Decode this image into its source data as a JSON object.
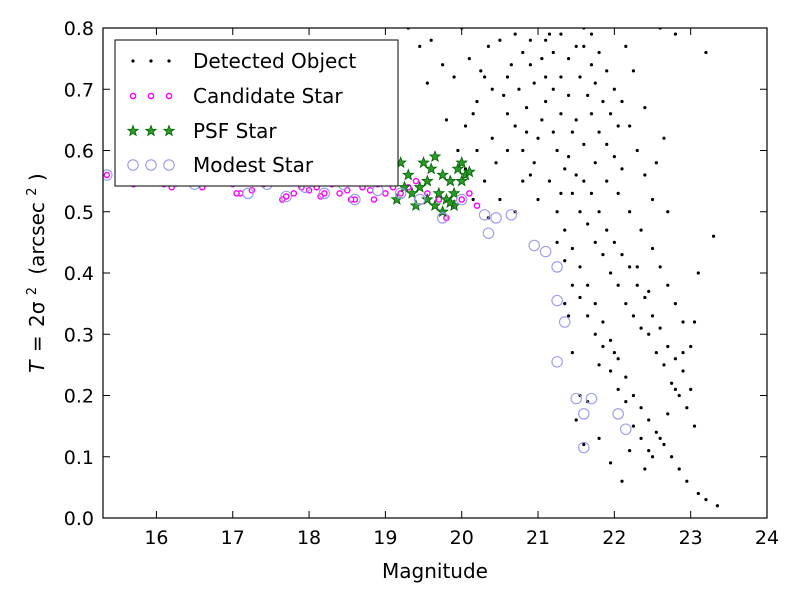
{
  "chart_data": {
    "type": "scatter",
    "title": "",
    "xlabel": "Magnitude",
    "ylabel": "T = 2σ² (arcsec²)",
    "ylabel_parts": {
      "lhs": "T",
      "eq": "=",
      "rhs": "2σ",
      "sup": "2",
      "unit_open": "(arcsec",
      "unit_sup": "2",
      "unit_close": ")"
    },
    "xlim": [
      15.3,
      24
    ],
    "ylim": [
      0.0,
      0.8
    ],
    "xticks": [
      "16",
      "17",
      "18",
      "19",
      "20",
      "21",
      "22",
      "23",
      "24"
    ],
    "yticks": [
      "0.0",
      "0.1",
      "0.2",
      "0.3",
      "0.4",
      "0.5",
      "0.6",
      "0.7",
      "0.8"
    ],
    "grid": false,
    "legend_position": "top-left",
    "colors": {
      "detected": "#000000",
      "candidate_edge": "#ff00ff",
      "psf_fill": "#2a9a2a",
      "psf_edge": "#006400",
      "modest_edge": "#9999ee"
    },
    "series": [
      {
        "name": "Detected Object",
        "marker": "dot",
        "points": [
          [
            20.35,
            0.49
          ],
          [
            20.5,
            0.52
          ],
          [
            20.7,
            0.5
          ],
          [
            20.8,
            0.55
          ],
          [
            20.95,
            0.58
          ],
          [
            21.0,
            0.52
          ],
          [
            20.4,
            0.62
          ],
          [
            20.6,
            0.66
          ],
          [
            20.75,
            0.7
          ],
          [
            20.9,
            0.74
          ],
          [
            21.1,
            0.78
          ],
          [
            20.5,
            0.78
          ],
          [
            20.3,
            0.72
          ],
          [
            20.2,
            0.68
          ],
          [
            20.1,
            0.75
          ],
          [
            20.0,
            0.8
          ],
          [
            19.6,
            0.78
          ],
          [
            19.9,
            0.72
          ],
          [
            19.8,
            0.65
          ],
          [
            20.45,
            0.58
          ],
          [
            20.6,
            0.6
          ],
          [
            20.85,
            0.63
          ],
          [
            21.05,
            0.65
          ],
          [
            21.2,
            0.7
          ],
          [
            21.3,
            0.72
          ],
          [
            21.4,
            0.75
          ],
          [
            21.5,
            0.77
          ],
          [
            21.6,
            0.8
          ],
          [
            21.7,
            0.79
          ],
          [
            21.8,
            0.76
          ],
          [
            21.9,
            0.73
          ],
          [
            22.0,
            0.7
          ],
          [
            22.1,
            0.68
          ],
          [
            22.2,
            0.64
          ],
          [
            22.3,
            0.6
          ],
          [
            22.4,
            0.56
          ],
          [
            22.5,
            0.52
          ],
          [
            21.25,
            0.6
          ],
          [
            21.35,
            0.57
          ],
          [
            21.45,
            0.53
          ],
          [
            21.55,
            0.5
          ],
          [
            21.65,
            0.48
          ],
          [
            21.75,
            0.45
          ],
          [
            21.85,
            0.43
          ],
          [
            21.95,
            0.4
          ],
          [
            22.05,
            0.38
          ],
          [
            22.15,
            0.35
          ],
          [
            22.25,
            0.33
          ],
          [
            22.35,
            0.31
          ],
          [
            22.45,
            0.3
          ],
          [
            22.55,
            0.27
          ],
          [
            22.65,
            0.25
          ],
          [
            22.75,
            0.22
          ],
          [
            22.85,
            0.2
          ],
          [
            22.95,
            0.18
          ],
          [
            23.05,
            0.15
          ],
          [
            21.3,
            0.66
          ],
          [
            21.45,
            0.63
          ],
          [
            21.6,
            0.61
          ],
          [
            21.75,
            0.58
          ],
          [
            21.9,
            0.55
          ],
          [
            22.05,
            0.53
          ],
          [
            22.2,
            0.5
          ],
          [
            22.35,
            0.47
          ],
          [
            22.5,
            0.44
          ],
          [
            22.6,
            0.41
          ],
          [
            22.7,
            0.38
          ],
          [
            22.8,
            0.35
          ],
          [
            22.9,
            0.32
          ],
          [
            23.0,
            0.28
          ],
          [
            21.15,
            0.55
          ],
          [
            21.25,
            0.5
          ],
          [
            21.35,
            0.47
          ],
          [
            21.45,
            0.44
          ],
          [
            21.55,
            0.41
          ],
          [
            21.65,
            0.38
          ],
          [
            21.75,
            0.35
          ],
          [
            21.85,
            0.32
          ],
          [
            21.95,
            0.29
          ],
          [
            22.05,
            0.26
          ],
          [
            22.15,
            0.23
          ],
          [
            22.25,
            0.2
          ],
          [
            22.35,
            0.18
          ],
          [
            22.45,
            0.16
          ],
          [
            22.55,
            0.14
          ],
          [
            22.65,
            0.12
          ],
          [
            22.75,
            0.1
          ],
          [
            22.85,
            0.08
          ],
          [
            22.95,
            0.06
          ],
          [
            23.1,
            0.04
          ],
          [
            23.2,
            0.03
          ],
          [
            23.35,
            0.02
          ],
          [
            23.3,
            0.46
          ],
          [
            23.2,
            0.76
          ],
          [
            23.1,
            0.4
          ],
          [
            23.05,
            0.32
          ],
          [
            22.9,
            0.27
          ],
          [
            22.8,
            0.21
          ],
          [
            22.7,
            0.17
          ],
          [
            22.6,
            0.13
          ],
          [
            22.5,
            0.1
          ],
          [
            22.4,
            0.08
          ],
          [
            22.2,
            0.11
          ],
          [
            22.1,
            0.06
          ],
          [
            21.95,
            0.09
          ],
          [
            21.8,
            0.13
          ],
          [
            21.65,
            0.19
          ],
          [
            21.55,
            0.2
          ],
          [
            21.5,
            0.16
          ],
          [
            21.6,
            0.12
          ],
          [
            21.4,
            0.33
          ],
          [
            21.35,
            0.35
          ],
          [
            21.45,
            0.27
          ],
          [
            21.8,
            0.25
          ],
          [
            22.0,
            0.27
          ],
          [
            22.3,
            0.41
          ],
          [
            22.45,
            0.37
          ],
          [
            22.55,
            0.58
          ],
          [
            22.7,
            0.5
          ],
          [
            22.65,
            0.62
          ],
          [
            22.4,
            0.67
          ],
          [
            22.25,
            0.73
          ],
          [
            22.15,
            0.77
          ],
          [
            22.6,
            0.8
          ],
          [
            22.8,
            0.79
          ],
          [
            20.55,
            0.69
          ],
          [
            20.65,
            0.74
          ],
          [
            20.85,
            0.67
          ],
          [
            20.95,
            0.71
          ],
          [
            21.05,
            0.75
          ],
          [
            21.15,
            0.79
          ],
          [
            20.3,
            0.55
          ],
          [
            20.2,
            0.6
          ],
          [
            20.15,
            0.52
          ],
          [
            20.05,
            0.57
          ],
          [
            19.95,
            0.6
          ],
          [
            19.75,
            0.74
          ],
          [
            19.55,
            0.71
          ],
          [
            19.45,
            0.77
          ],
          [
            19.3,
            0.8
          ],
          [
            21.7,
            0.66
          ],
          [
            21.8,
            0.63
          ],
          [
            21.9,
            0.61
          ],
          [
            22.0,
            0.59
          ],
          [
            22.1,
            0.57
          ],
          [
            21.2,
            0.63
          ],
          [
            21.1,
            0.68
          ],
          [
            21.0,
            0.62
          ],
          [
            20.9,
            0.56
          ],
          [
            20.8,
            0.6
          ],
          [
            20.7,
            0.64
          ],
          [
            21.55,
            0.72
          ],
          [
            21.65,
            0.69
          ],
          [
            21.75,
            0.71
          ],
          [
            21.85,
            0.68
          ],
          [
            21.95,
            0.66
          ],
          [
            22.05,
            0.64
          ],
          [
            21.4,
            0.69
          ],
          [
            21.5,
            0.65
          ],
          [
            21.6,
            0.55
          ],
          [
            21.7,
            0.53
          ],
          [
            21.8,
            0.5
          ],
          [
            21.9,
            0.47
          ],
          [
            22.0,
            0.45
          ],
          [
            22.1,
            0.43
          ],
          [
            22.2,
            0.41
          ],
          [
            22.3,
            0.38
          ],
          [
            22.4,
            0.36
          ],
          [
            22.5,
            0.33
          ],
          [
            22.6,
            0.31
          ],
          [
            22.7,
            0.28
          ],
          [
            22.8,
            0.26
          ],
          [
            22.9,
            0.24
          ],
          [
            23.0,
            0.21
          ],
          [
            21.6,
            0.77
          ],
          [
            21.7,
            0.74
          ],
          [
            21.3,
            0.79
          ],
          [
            21.2,
            0.76
          ],
          [
            21.1,
            0.72
          ],
          [
            20.9,
            0.78
          ],
          [
            20.8,
            0.76
          ],
          [
            20.7,
            0.79
          ],
          [
            20.6,
            0.72
          ],
          [
            20.4,
            0.7
          ],
          [
            20.35,
            0.77
          ],
          [
            20.25,
            0.73
          ],
          [
            20.15,
            0.66
          ],
          [
            20.05,
            0.64
          ],
          [
            21.25,
            0.45
          ],
          [
            21.35,
            0.42
          ],
          [
            21.45,
            0.38
          ],
          [
            21.55,
            0.36
          ],
          [
            21.65,
            0.33
          ],
          [
            21.75,
            0.3
          ],
          [
            21.85,
            0.28
          ],
          [
            21.95,
            0.24
          ],
          [
            22.05,
            0.21
          ],
          [
            22.15,
            0.19
          ],
          [
            22.25,
            0.15
          ],
          [
            22.35,
            0.13
          ],
          [
            22.45,
            0.11
          ],
          [
            21.4,
            0.59
          ],
          [
            21.5,
            0.56
          ],
          [
            21.3,
            0.53
          ]
        ]
      },
      {
        "name": "Candidate Star",
        "marker": "hollow-dot",
        "points": [
          [
            15.35,
            0.56
          ],
          [
            15.5,
            0.55
          ],
          [
            15.7,
            0.545
          ],
          [
            15.9,
            0.55
          ],
          [
            16.1,
            0.545
          ],
          [
            16.2,
            0.54
          ],
          [
            16.4,
            0.55
          ],
          [
            16.6,
            0.54
          ],
          [
            16.8,
            0.55
          ],
          [
            17.0,
            0.545
          ],
          [
            17.1,
            0.53
          ],
          [
            17.25,
            0.535
          ],
          [
            17.4,
            0.545
          ],
          [
            17.6,
            0.55
          ],
          [
            17.7,
            0.525
          ],
          [
            17.8,
            0.53
          ],
          [
            17.9,
            0.54
          ],
          [
            18.0,
            0.535
          ],
          [
            18.1,
            0.54
          ],
          [
            18.2,
            0.53
          ],
          [
            18.3,
            0.545
          ],
          [
            18.4,
            0.53
          ],
          [
            18.5,
            0.535
          ],
          [
            18.6,
            0.52
          ],
          [
            18.7,
            0.54
          ],
          [
            18.8,
            0.535
          ],
          [
            18.9,
            0.545
          ],
          [
            19.0,
            0.53
          ],
          [
            19.1,
            0.54
          ],
          [
            19.2,
            0.53
          ],
          [
            19.3,
            0.54
          ],
          [
            19.4,
            0.55
          ],
          [
            19.55,
            0.53
          ],
          [
            19.7,
            0.52
          ],
          [
            19.8,
            0.49
          ],
          [
            19.9,
            0.51
          ],
          [
            20.0,
            0.52
          ],
          [
            20.1,
            0.53
          ],
          [
            20.2,
            0.51
          ],
          [
            17.05,
            0.53
          ],
          [
            17.65,
            0.52
          ],
          [
            18.15,
            0.525
          ],
          [
            18.55,
            0.52
          ],
          [
            18.85,
            0.52
          ]
        ]
      },
      {
        "name": "PSF Star",
        "marker": "star",
        "points": [
          [
            19.15,
            0.52
          ],
          [
            19.2,
            0.58
          ],
          [
            19.25,
            0.54
          ],
          [
            19.3,
            0.56
          ],
          [
            19.35,
            0.53
          ],
          [
            19.4,
            0.51
          ],
          [
            19.45,
            0.54
          ],
          [
            19.5,
            0.58
          ],
          [
            19.55,
            0.55
          ],
          [
            19.6,
            0.57
          ],
          [
            19.65,
            0.59
          ],
          [
            19.7,
            0.53
          ],
          [
            19.75,
            0.56
          ],
          [
            19.8,
            0.52
          ],
          [
            19.85,
            0.55
          ],
          [
            19.9,
            0.51
          ],
          [
            19.95,
            0.57
          ],
          [
            20.0,
            0.58
          ],
          [
            20.05,
            0.56
          ],
          [
            19.55,
            0.52
          ],
          [
            19.65,
            0.51
          ],
          [
            19.75,
            0.5
          ],
          [
            19.9,
            0.53
          ],
          [
            20.0,
            0.55
          ],
          [
            20.1,
            0.565
          ],
          [
            19.85,
            0.515
          ]
        ]
      },
      {
        "name": "Modest Star",
        "marker": "ring",
        "points": [
          [
            15.35,
            0.56
          ],
          [
            16.0,
            0.575
          ],
          [
            16.25,
            0.55
          ],
          [
            16.5,
            0.545
          ],
          [
            16.75,
            0.56
          ],
          [
            17.0,
            0.55
          ],
          [
            17.2,
            0.53
          ],
          [
            17.45,
            0.545
          ],
          [
            17.7,
            0.525
          ],
          [
            17.95,
            0.54
          ],
          [
            18.2,
            0.53
          ],
          [
            18.45,
            0.545
          ],
          [
            18.6,
            0.52
          ],
          [
            18.9,
            0.535
          ],
          [
            19.2,
            0.53
          ],
          [
            19.45,
            0.52
          ],
          [
            19.75,
            0.49
          ],
          [
            20.0,
            0.52
          ],
          [
            20.3,
            0.495
          ],
          [
            20.35,
            0.465
          ],
          [
            20.45,
            0.49
          ],
          [
            20.65,
            0.495
          ],
          [
            20.95,
            0.445
          ],
          [
            21.1,
            0.435
          ],
          [
            21.25,
            0.41
          ],
          [
            21.25,
            0.355
          ],
          [
            21.35,
            0.32
          ],
          [
            21.25,
            0.255
          ],
          [
            21.5,
            0.195
          ],
          [
            21.6,
            0.17
          ],
          [
            21.6,
            0.115
          ],
          [
            21.7,
            0.195
          ],
          [
            22.05,
            0.17
          ],
          [
            22.15,
            0.145
          ]
        ]
      }
    ]
  }
}
